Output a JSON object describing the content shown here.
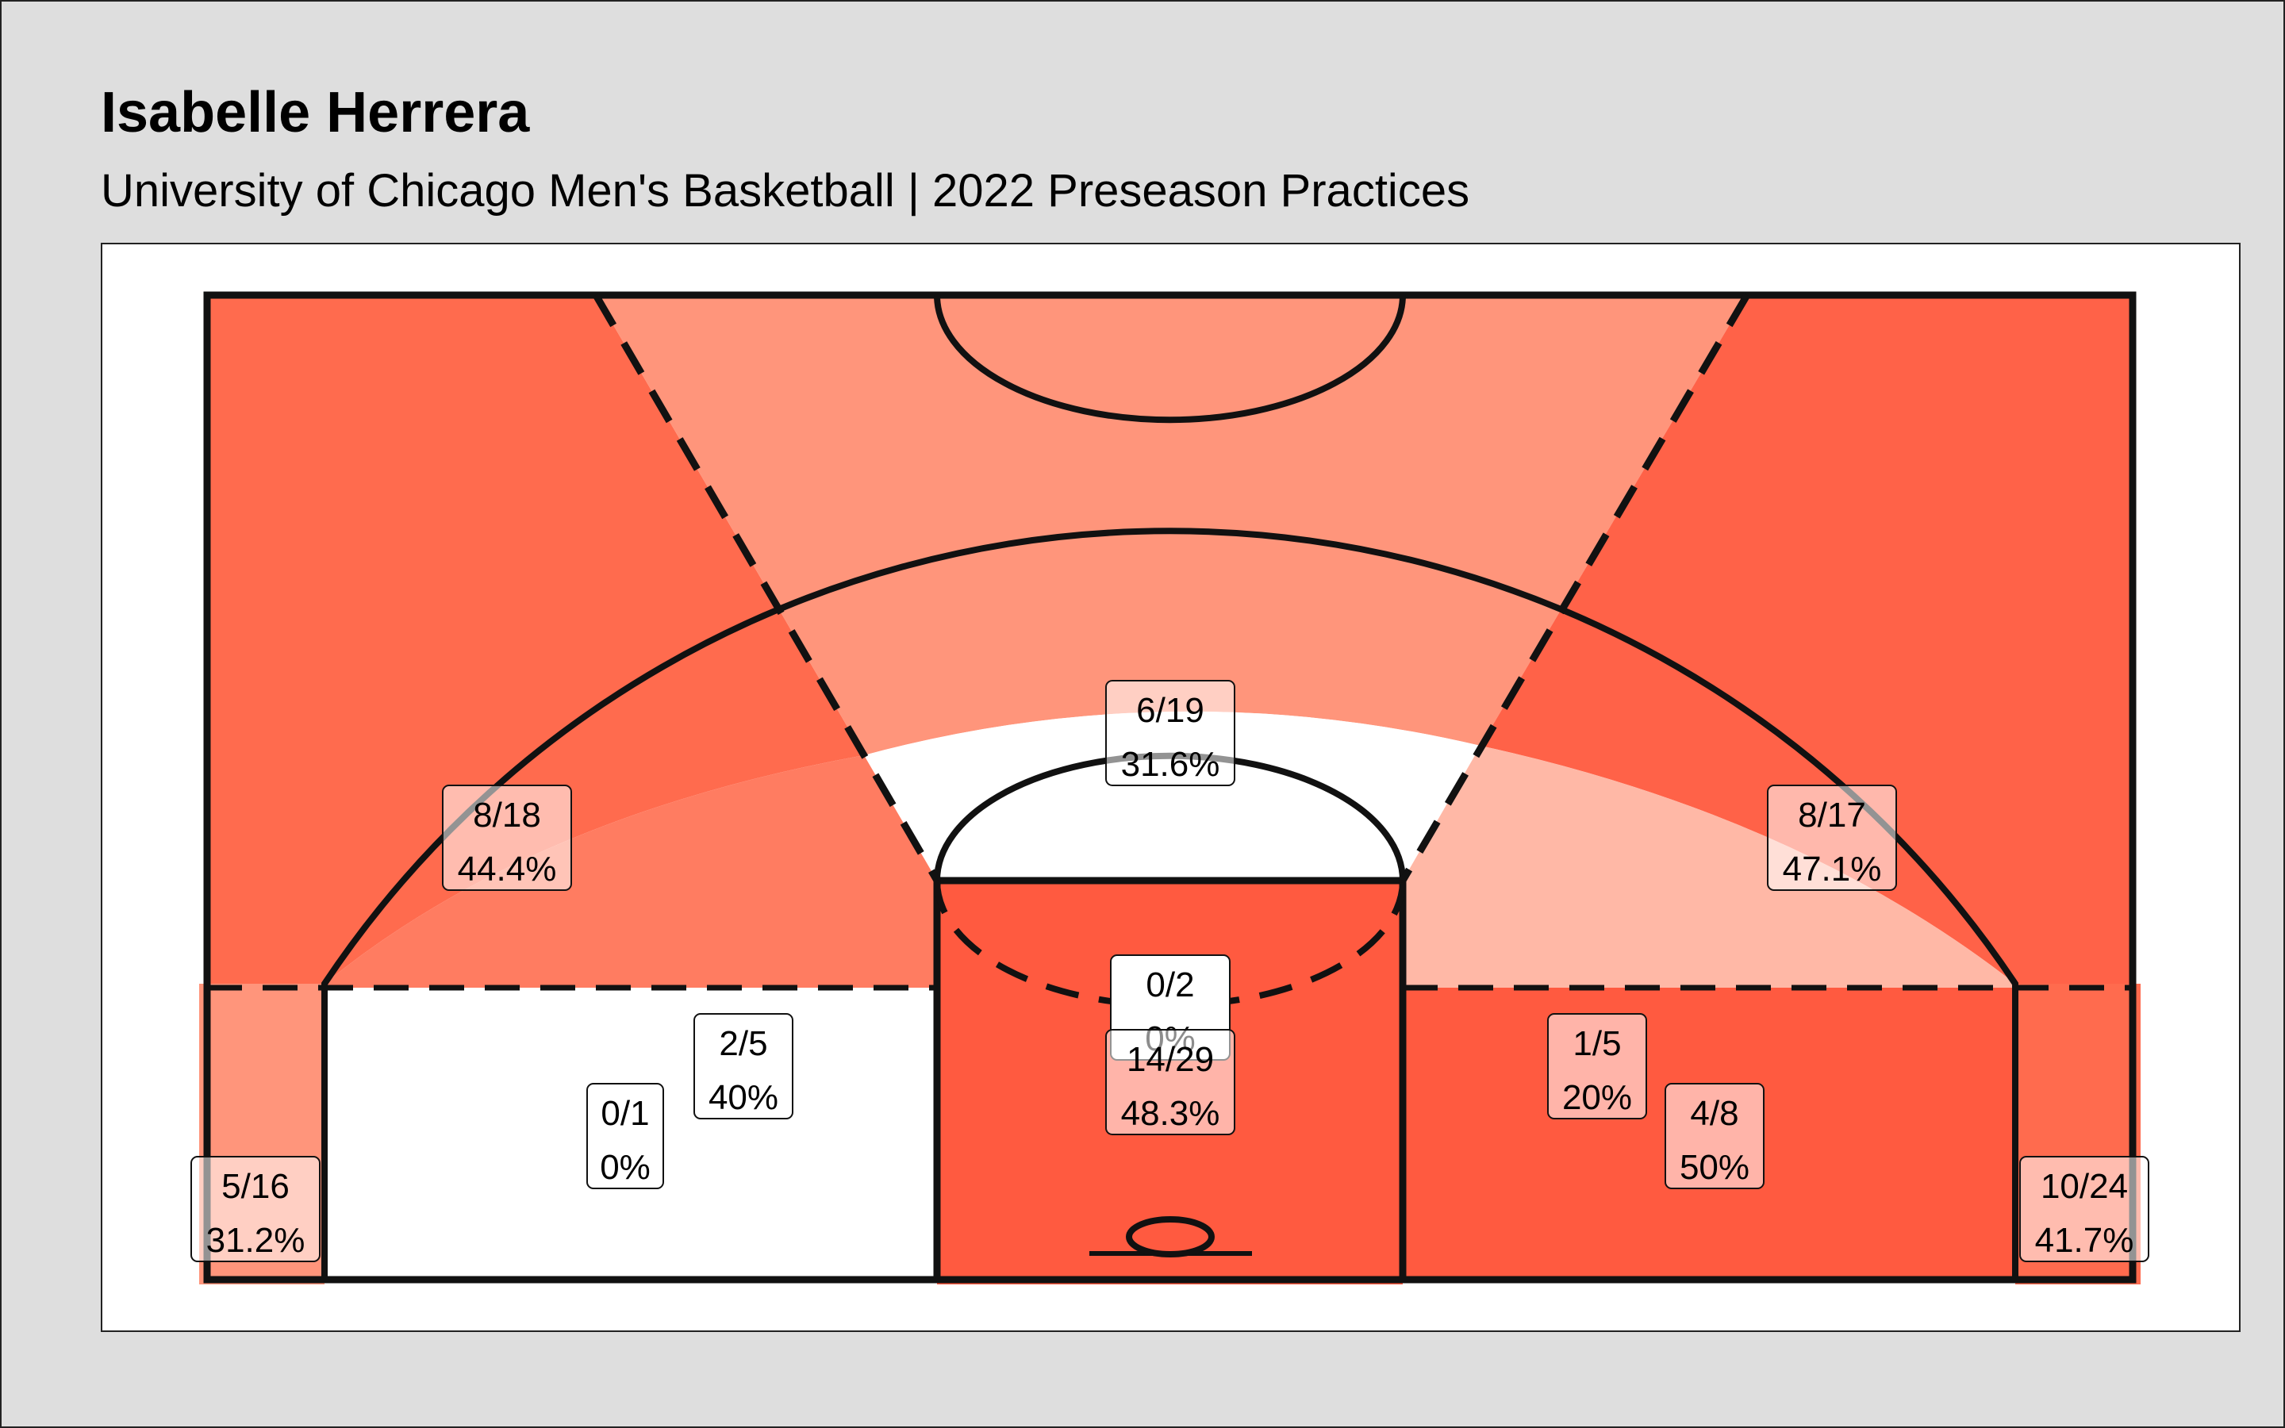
{
  "title": "Isabelle Herrera",
  "subtitle": "University of Chicago Men's Basketball | 2022 Preseason Practices",
  "chart_data": {
    "type": "heatmap",
    "description_values": "made/attempted and field goal percentage per court zone",
    "colors": {
      "scale_low": "#ffffff",
      "scale_high": "#ff5533",
      "lines": "#111111",
      "label_box": "#ffffff"
    },
    "zones": [
      {
        "id": "left-above-break-three",
        "made": 8,
        "attempts": 18,
        "fraction": "8/18",
        "pct_label": "44.4%",
        "fg_pct": 44.4,
        "fill": "#ff6b4e"
      },
      {
        "id": "top-key-three",
        "made": 6,
        "attempts": 19,
        "fraction": "6/19",
        "pct_label": "31.6%",
        "fg_pct": 31.6,
        "fill": "#ff957b"
      },
      {
        "id": "right-above-break-three",
        "made": 8,
        "attempts": 17,
        "fraction": "8/17",
        "pct_label": "47.1%",
        "fg_pct": 47.1,
        "fill": "#ff6248"
      },
      {
        "id": "top-key-midrange",
        "made": 0,
        "attempts": 2,
        "fraction": "0/2",
        "pct_label": "0%",
        "fg_pct": 0,
        "fill": "#ffffff"
      },
      {
        "id": "left-wing-midrange",
        "made": 2,
        "attempts": 5,
        "fraction": "2/5",
        "pct_label": "40%",
        "fg_pct": 40,
        "fill": "#ff7c61"
      },
      {
        "id": "right-wing-midrange",
        "made": 1,
        "attempts": 5,
        "fraction": "1/5",
        "pct_label": "20%",
        "fg_pct": 20,
        "fill": "#ffb8a6"
      },
      {
        "id": "left-baseline-midrange",
        "made": 0,
        "attempts": 1,
        "fraction": "0/1",
        "pct_label": "0%",
        "fg_pct": 0,
        "fill": "#ffffff"
      },
      {
        "id": "paint",
        "made": 14,
        "attempts": 29,
        "fraction": "14/29",
        "pct_label": "48.3%",
        "fg_pct": 48.3,
        "fill": "#ff5a40"
      },
      {
        "id": "right-baseline-midrange",
        "made": 4,
        "attempts": 8,
        "fraction": "4/8",
        "pct_label": "50%",
        "fg_pct": 50,
        "fill": "#ff5a40"
      },
      {
        "id": "left-corner-three",
        "made": 5,
        "attempts": 16,
        "fraction": "5/16",
        "pct_label": "31.2%",
        "fg_pct": 31.2,
        "fill": "#ff957b"
      },
      {
        "id": "right-corner-three",
        "made": 10,
        "attempts": 24,
        "fraction": "10/24",
        "pct_label": "41.7%",
        "fg_pct": 41.7,
        "fill": "#ff6b4e"
      }
    ]
  }
}
